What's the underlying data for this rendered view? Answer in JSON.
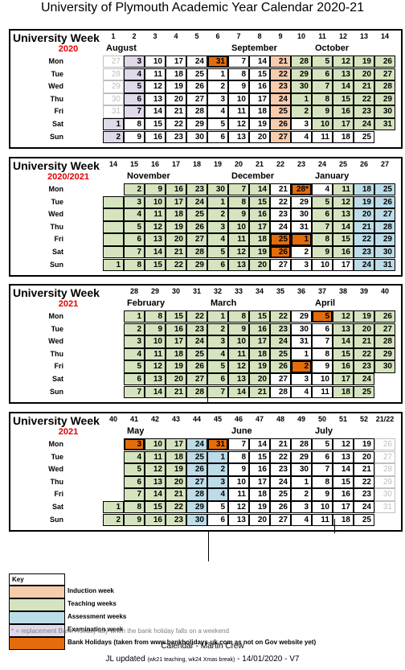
{
  "title": "University of Plymouth Academic Year Calendar 2020-21",
  "day_names": [
    "Mon",
    "Tue",
    "Wed",
    "Thu",
    "Fri",
    "Sat",
    "Sun"
  ],
  "legend": {
    "C": "#d5e4be",
    "A": "#bcdce8",
    "X": "#e0d9ea",
    "I": "#f8cbad",
    "H": "#e46c0a"
  },
  "sections": [
    {
      "label": "University Week",
      "year": "2020",
      "weeks": [
        "1",
        "2",
        "3",
        "4",
        "5",
        "6",
        "7",
        "8",
        "9",
        "10",
        "11",
        "12",
        "13",
        "14"
      ],
      "months": [
        {
          "name": "August",
          "col": 0
        },
        {
          "name": "September",
          "col": 6
        },
        {
          "name": "October",
          "col": 10
        }
      ],
      "columns": [
        {
          "d": [
            "27",
            "28",
            "29",
            "30",
            "31",
            "1",
            "2"
          ],
          "s": "GGGGGXX"
        },
        {
          "d": [
            "3",
            "4",
            "5",
            "6",
            "7",
            "8",
            "9"
          ],
          "s": "XXXXXWW"
        },
        {
          "d": [
            "10",
            "11",
            "12",
            "13",
            "14",
            "15",
            "16"
          ],
          "s": "WWWWWWW"
        },
        {
          "d": [
            "17",
            "18",
            "19",
            "20",
            "21",
            "22",
            "23"
          ],
          "s": "WWWWWWW"
        },
        {
          "d": [
            "24",
            "25",
            "26",
            "27",
            "28",
            "29",
            "30"
          ],
          "s": "WWWWWWW"
        },
        {
          "d": [
            "31",
            "1",
            "2",
            "3",
            "4",
            "5",
            "6"
          ],
          "s": "HWWWWWW"
        },
        {
          "d": [
            "7",
            "8",
            "9",
            "10",
            "11",
            "12",
            "13"
          ],
          "s": "WWWWWWW"
        },
        {
          "d": [
            "14",
            "15",
            "16",
            "17",
            "18",
            "19",
            "20"
          ],
          "s": "WWWWWWW"
        },
        {
          "d": [
            "21",
            "22",
            "23",
            "24",
            "25",
            "26",
            "27"
          ],
          "s": "IIIIIII"
        },
        {
          "d": [
            "28",
            "29",
            "30",
            "1",
            "2",
            "3",
            "4"
          ],
          "s": "TTTTTWW"
        },
        {
          "d": [
            "5",
            "6",
            "7",
            "8",
            "9",
            "10",
            "11"
          ],
          "s": "TTTTTTW"
        },
        {
          "d": [
            "12",
            "13",
            "14",
            "15",
            "16",
            "17",
            "18"
          ],
          "s": "TTTTTTW"
        },
        {
          "d": [
            "19",
            "20",
            "21",
            "22",
            "23",
            "24",
            "25"
          ],
          "s": "TTTTTTW"
        },
        {
          "d": [
            "26",
            "27",
            "28",
            "29",
            "30",
            "31",
            ""
          ],
          "s": "TTTTTTN"
        }
      ]
    },
    {
      "label": "University Week",
      "year": "2020/2021",
      "weeks": [
        "14",
        "15",
        "16",
        "17",
        "18",
        "19",
        "20",
        "21",
        "22",
        "23",
        "24",
        "25",
        "26",
        "27"
      ],
      "months": [
        {
          "name": "November",
          "col": 1
        },
        {
          "name": "December",
          "col": 6
        },
        {
          "name": "January",
          "col": 10
        }
      ],
      "columns": [
        {
          "d": [
            "",
            "",
            "",
            "",
            "",
            "",
            "1"
          ],
          "s": "NTTTTTT"
        },
        {
          "d": [
            "2",
            "3",
            "4",
            "5",
            "6",
            "7",
            "8"
          ],
          "s": "TTTTTTT"
        },
        {
          "d": [
            "9",
            "10",
            "11",
            "12",
            "13",
            "14",
            "15"
          ],
          "s": "TTTTTTT"
        },
        {
          "d": [
            "16",
            "17",
            "18",
            "19",
            "20",
            "21",
            "22"
          ],
          "s": "TTTTTTT"
        },
        {
          "d": [
            "23",
            "24",
            "25",
            "26",
            "27",
            "28",
            "29"
          ],
          "s": "TTTTTTT"
        },
        {
          "d": [
            "30",
            "1",
            "2",
            "3",
            "4",
            "5",
            "6"
          ],
          "s": "TTTTTTT"
        },
        {
          "d": [
            "7",
            "8",
            "9",
            "10",
            "11",
            "12",
            "13"
          ],
          "s": "TTTTTTT"
        },
        {
          "d": [
            "14",
            "15",
            "16",
            "17",
            "18",
            "19",
            "20"
          ],
          "s": "TTTTTTT"
        },
        {
          "d": [
            "21",
            "22",
            "23",
            "24",
            "25",
            "26",
            "27"
          ],
          "s": "WWWWHHW"
        },
        {
          "d": [
            "28*",
            "29",
            "30",
            "31",
            "1",
            "2",
            "3"
          ],
          "s": "HWWWHWW"
        },
        {
          "d": [
            "4",
            "5",
            "6",
            "7",
            "8",
            "9",
            "10"
          ],
          "s": "WTTTTTW"
        },
        {
          "d": [
            "11",
            "12",
            "13",
            "14",
            "15",
            "16",
            "17"
          ],
          "s": "TTTTTTW"
        },
        {
          "d": [
            "18",
            "19",
            "20",
            "21",
            "22",
            "23",
            "24"
          ],
          "s": "AAAAAAA"
        },
        {
          "d": [
            "25",
            "26",
            "27",
            "28",
            "29",
            "30",
            "31"
          ],
          "s": "AAAAAAA"
        }
      ]
    },
    {
      "label": "University Week",
      "year": "2021",
      "weeks": [
        "",
        "28",
        "29",
        "30",
        "31",
        "32",
        "33",
        "34",
        "35",
        "36",
        "37",
        "38",
        "39",
        "40"
      ],
      "months": [
        {
          "name": "February",
          "col": 1
        },
        {
          "name": "March",
          "col": 5
        },
        {
          "name": "April",
          "col": 10
        }
      ],
      "columns": [
        {
          "d": [
            "",
            "",
            "",
            "",
            "",
            "",
            ""
          ],
          "s": "NNNNNNN"
        },
        {
          "d": [
            "1",
            "2",
            "3",
            "4",
            "5",
            "6",
            "7"
          ],
          "s": "TTTTTTT"
        },
        {
          "d": [
            "8",
            "9",
            "10",
            "11",
            "12",
            "13",
            "14"
          ],
          "s": "TTTTTTT"
        },
        {
          "d": [
            "15",
            "16",
            "17",
            "18",
            "19",
            "20",
            "21"
          ],
          "s": "TTTTTTT"
        },
        {
          "d": [
            "22",
            "23",
            "24",
            "25",
            "26",
            "27",
            "28"
          ],
          "s": "TTTTTTT"
        },
        {
          "d": [
            "1",
            "2",
            "3",
            "4",
            "5",
            "6",
            "7"
          ],
          "s": "TTTTTTT"
        },
        {
          "d": [
            "8",
            "9",
            "10",
            "11",
            "12",
            "13",
            "14"
          ],
          "s": "TTTTTTT"
        },
        {
          "d": [
            "15",
            "16",
            "17",
            "18",
            "19",
            "20",
            "21"
          ],
          "s": "TTTTTTT"
        },
        {
          "d": [
            "22",
            "23",
            "24",
            "25",
            "26",
            "27",
            "28"
          ],
          "s": "TTTTTWW"
        },
        {
          "d": [
            "29",
            "30",
            "31",
            "1",
            "2",
            "3",
            "4"
          ],
          "s": "WWWWHWW"
        },
        {
          "d": [
            "5",
            "6",
            "7",
            "8",
            "9",
            "10",
            "11"
          ],
          "s": "HWWWWWW"
        },
        {
          "d": [
            "12",
            "13",
            "14",
            "15",
            "16",
            "17",
            "18"
          ],
          "s": "TTTTTTT"
        },
        {
          "d": [
            "19",
            "20",
            "21",
            "22",
            "23",
            "24",
            "25"
          ],
          "s": "TTTTTTT"
        },
        {
          "d": [
            "26",
            "27",
            "28",
            "29",
            "30",
            "",
            ""
          ],
          "s": "TTTTTNN"
        }
      ]
    },
    {
      "label": "University Week",
      "year": "2021",
      "weeks": [
        "40",
        "41",
        "42",
        "43",
        "44",
        "45",
        "46",
        "47",
        "48",
        "49",
        "50",
        "51",
        "52",
        "21/22"
      ],
      "months": [
        {
          "name": "May",
          "col": 1
        },
        {
          "name": "June",
          "col": 6
        },
        {
          "name": "July",
          "col": 10
        }
      ],
      "columns": [
        {
          "d": [
            "",
            "",
            "",
            "",
            "",
            "1",
            "2"
          ],
          "s": "NNNNNTT"
        },
        {
          "d": [
            "3",
            "4",
            "5",
            "6",
            "7",
            "8",
            "9"
          ],
          "s": "HTTTTTT"
        },
        {
          "d": [
            "10",
            "11",
            "12",
            "13",
            "14",
            "15",
            "16"
          ],
          "s": "TTTTTTT"
        },
        {
          "d": [
            "17",
            "18",
            "19",
            "20",
            "21",
            "22",
            "23"
          ],
          "s": "TTTTTTT"
        },
        {
          "d": [
            "24",
            "25",
            "26",
            "27",
            "28",
            "29",
            "30"
          ],
          "s": "AAAAAAA"
        },
        {
          "d": [
            "31",
            "1",
            "2",
            "3",
            "4",
            "5",
            "6"
          ],
          "s": "HAAAAWW"
        },
        {
          "d": [
            "7",
            "8",
            "9",
            "10",
            "11",
            "12",
            "13"
          ],
          "s": "WWWWWWW"
        },
        {
          "d": [
            "14",
            "15",
            "16",
            "17",
            "18",
            "19",
            "20"
          ],
          "s": "WWWWWWW"
        },
        {
          "d": [
            "21",
            "22",
            "23",
            "24",
            "25",
            "26",
            "27"
          ],
          "s": "WWWWWWW"
        },
        {
          "d": [
            "28",
            "29",
            "30",
            "1",
            "2",
            "3",
            "4"
          ],
          "s": "WWWWWWW"
        },
        {
          "d": [
            "5",
            "6",
            "7",
            "8",
            "9",
            "10",
            "11"
          ],
          "s": "WWWWWWW"
        },
        {
          "d": [
            "12",
            "13",
            "14",
            "15",
            "16",
            "17",
            "18"
          ],
          "s": "WWWWWWW"
        },
        {
          "d": [
            "19",
            "20",
            "21",
            "22",
            "23",
            "24",
            "25"
          ],
          "s": "WWWWWWW"
        },
        {
          "d": [
            "26",
            "27",
            "28",
            "29",
            "30",
            "31",
            ""
          ],
          "s": "GGGGGGN"
        }
      ]
    }
  ],
  "key": {
    "title": "Key",
    "items": [
      {
        "color": "#f8cbad",
        "label": "Induction week"
      },
      {
        "color": "#d5e4be",
        "label": "Teaching weeks"
      },
      {
        "color": "#bcdce8",
        "label": "Assessment weeks"
      },
      {
        "color": "#e0d9ea",
        "label": "Examination week"
      },
      {
        "color": "#e46c0a",
        "label": "Bank Holidays (taken from www.bankholidays-uk.com as not on Gov website yet)"
      }
    ]
  },
  "note": "* = replacement Bank Holiday day when the bank holiday falls on a weekend",
  "credit": "Calendar - Martin Crew",
  "updated_prefix": "JL updated",
  "updated_small": "(wk21 teaching, wk24 Xmas break)",
  "updated_suffix": "- 14/01/2020 - V7"
}
